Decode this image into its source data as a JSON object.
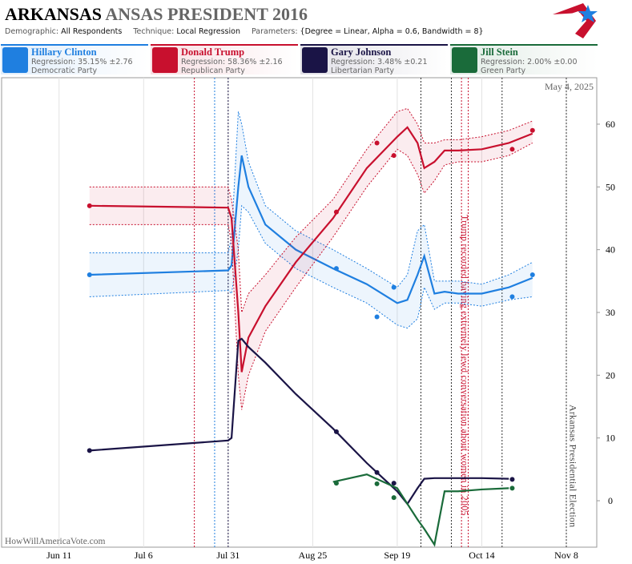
{
  "header": {
    "state": "ARKANSAS",
    "title_rest": "ANSAS PRESIDENT 2016",
    "params": [
      [
        "Demographic:",
        "All Respondents"
      ],
      [
        "Technique:",
        "Local Regression"
      ],
      [
        "Parameters:",
        "{Degree = Linear, Alpha = 0.6, Bandwidth = 8}"
      ]
    ]
  },
  "chart_data": {
    "type": "line",
    "date": "May 4, 2025",
    "watermark": "HowWillAmericaVote.com",
    "x": [
      "Jun 20",
      "Sep 1",
      "Sep 13",
      "Sep 18",
      "Oct 23",
      "Oct 29"
    ],
    "fit_x": [
      "Jun 20",
      "Jul 31",
      "Aug 1",
      "Aug 3",
      "Aug 4",
      "Aug 6",
      "Aug 11",
      "Aug 20",
      "Aug 31",
      "Sep 10",
      "Sep 19",
      "Sep 22",
      "Sep 25",
      "Sep 27",
      "Sep 30",
      "Oct 3",
      "Oct 7",
      "Oct 14",
      "Oct 22",
      "Oct 29"
    ],
    "xlim": [
      "May 25",
      "Nov 17"
    ],
    "xticks": [
      "Jun 11",
      "Jul 6",
      "Jul 31",
      "Aug 25",
      "Sep 19",
      "Oct 14",
      "Nov 8"
    ],
    "ylim": [
      -7.4,
      67.4
    ],
    "yticks": [
      0,
      10,
      20,
      30,
      40,
      50,
      60
    ],
    "grid": "x",
    "series": [
      {
        "name": "Hillary Clinton",
        "regression": "Regression: 35.15% ±2.76",
        "party": "Democratic Party",
        "color": "#1f7fe0",
        "values": [
          36,
          37,
          29.3,
          34,
          32.5,
          36
        ],
        "fit": [
          36,
          36.7,
          37.5,
          50,
          55,
          50,
          44,
          40,
          37,
          34.5,
          31.5,
          32,
          36,
          39,
          33,
          33.3,
          33,
          33,
          34,
          35.5
        ],
        "fit_upper": [
          39.5,
          39.5,
          42,
          62,
          60,
          54,
          47,
          43,
          40,
          37,
          34,
          36,
          43,
          44,
          35,
          35,
          35,
          34.5,
          36,
          38
        ],
        "fit_lower": [
          32.5,
          33.5,
          33,
          40,
          47,
          46,
          41,
          37,
          34,
          31.5,
          28,
          27.5,
          29,
          34,
          30.5,
          31.5,
          31.5,
          31,
          32,
          32.5
        ]
      },
      {
        "name": "Donald Trump",
        "regression": "Regression: 58.36% ±2.16",
        "party": "Republican Party",
        "color": "#c8102e",
        "values": [
          47,
          46,
          57,
          55,
          56,
          59
        ],
        "fit": [
          47,
          46.7,
          45,
          30,
          20.5,
          26,
          31,
          38,
          45,
          53,
          58,
          59.5,
          57,
          53,
          54,
          55.8,
          55.8,
          56,
          57,
          58.5
        ],
        "fit_upper": [
          50,
          50,
          48,
          40,
          30,
          33,
          36,
          42,
          48,
          56,
          62,
          62.5,
          60,
          57,
          57,
          57.5,
          57.5,
          58,
          59,
          60.5
        ],
        "fit_lower": [
          44,
          44,
          41,
          20,
          14.5,
          20,
          27,
          34,
          42,
          50,
          56,
          55,
          52,
          49,
          51,
          53.5,
          54,
          54,
          55,
          57
        ]
      },
      {
        "name": "Gary Johnson",
        "regression": "Regression: 3.48% ±0.21",
        "party": "Libertarian Party",
        "color": "#1a1446",
        "values": [
          8,
          11,
          4.5,
          2.8,
          3.4,
          null
        ],
        "fit": [
          8,
          9.6,
          10,
          25.5,
          25.8,
          24.5,
          22,
          17,
          11.5,
          6,
          1.5,
          -0.5,
          2,
          3.5,
          3.6,
          3.6,
          3.6,
          3.6,
          3.5,
          null
        ]
      },
      {
        "name": "Jill Stein",
        "regression": "Regression: 2.00% ±0.00",
        "party": "Green Party",
        "color": "#1a6b3a",
        "values": [
          null,
          2.8,
          2.7,
          0.5,
          2.0,
          null
        ],
        "fit": [
          null,
          null,
          null,
          null,
          null,
          null,
          null,
          null,
          3.0,
          4.2,
          2.0,
          -0.5,
          -3,
          -4.5,
          -7,
          1.5,
          1.5,
          1.8,
          2.0,
          null
        ]
      }
    ],
    "events": [
      {
        "x": "Jul 21",
        "color": "#c8102e"
      },
      {
        "x": "Jul 27",
        "color": "#1f7fe0"
      },
      {
        "x": "Jul 31",
        "color": "#1a1446"
      },
      {
        "x": "Sep 26",
        "color": "#333333"
      },
      {
        "x": "Oct 5",
        "color": "#333333"
      },
      {
        "x": "Oct 8",
        "color": "#c8102e"
      },
      {
        "x": "Oct 10",
        "color": "#c8102e"
      },
      {
        "x": "Oct 20",
        "color": "#333333"
      },
      {
        "x": "Nov 8",
        "color": "#333333"
      }
    ],
    "annotations": [
      {
        "x": "Oct 9",
        "text": "Trump recorded having extremely lewd conversation about women in 2005",
        "color": "#c8102e"
      },
      {
        "x": "Nov 10",
        "text": "Arkansas Presidential Election",
        "color": "#444444"
      }
    ]
  }
}
